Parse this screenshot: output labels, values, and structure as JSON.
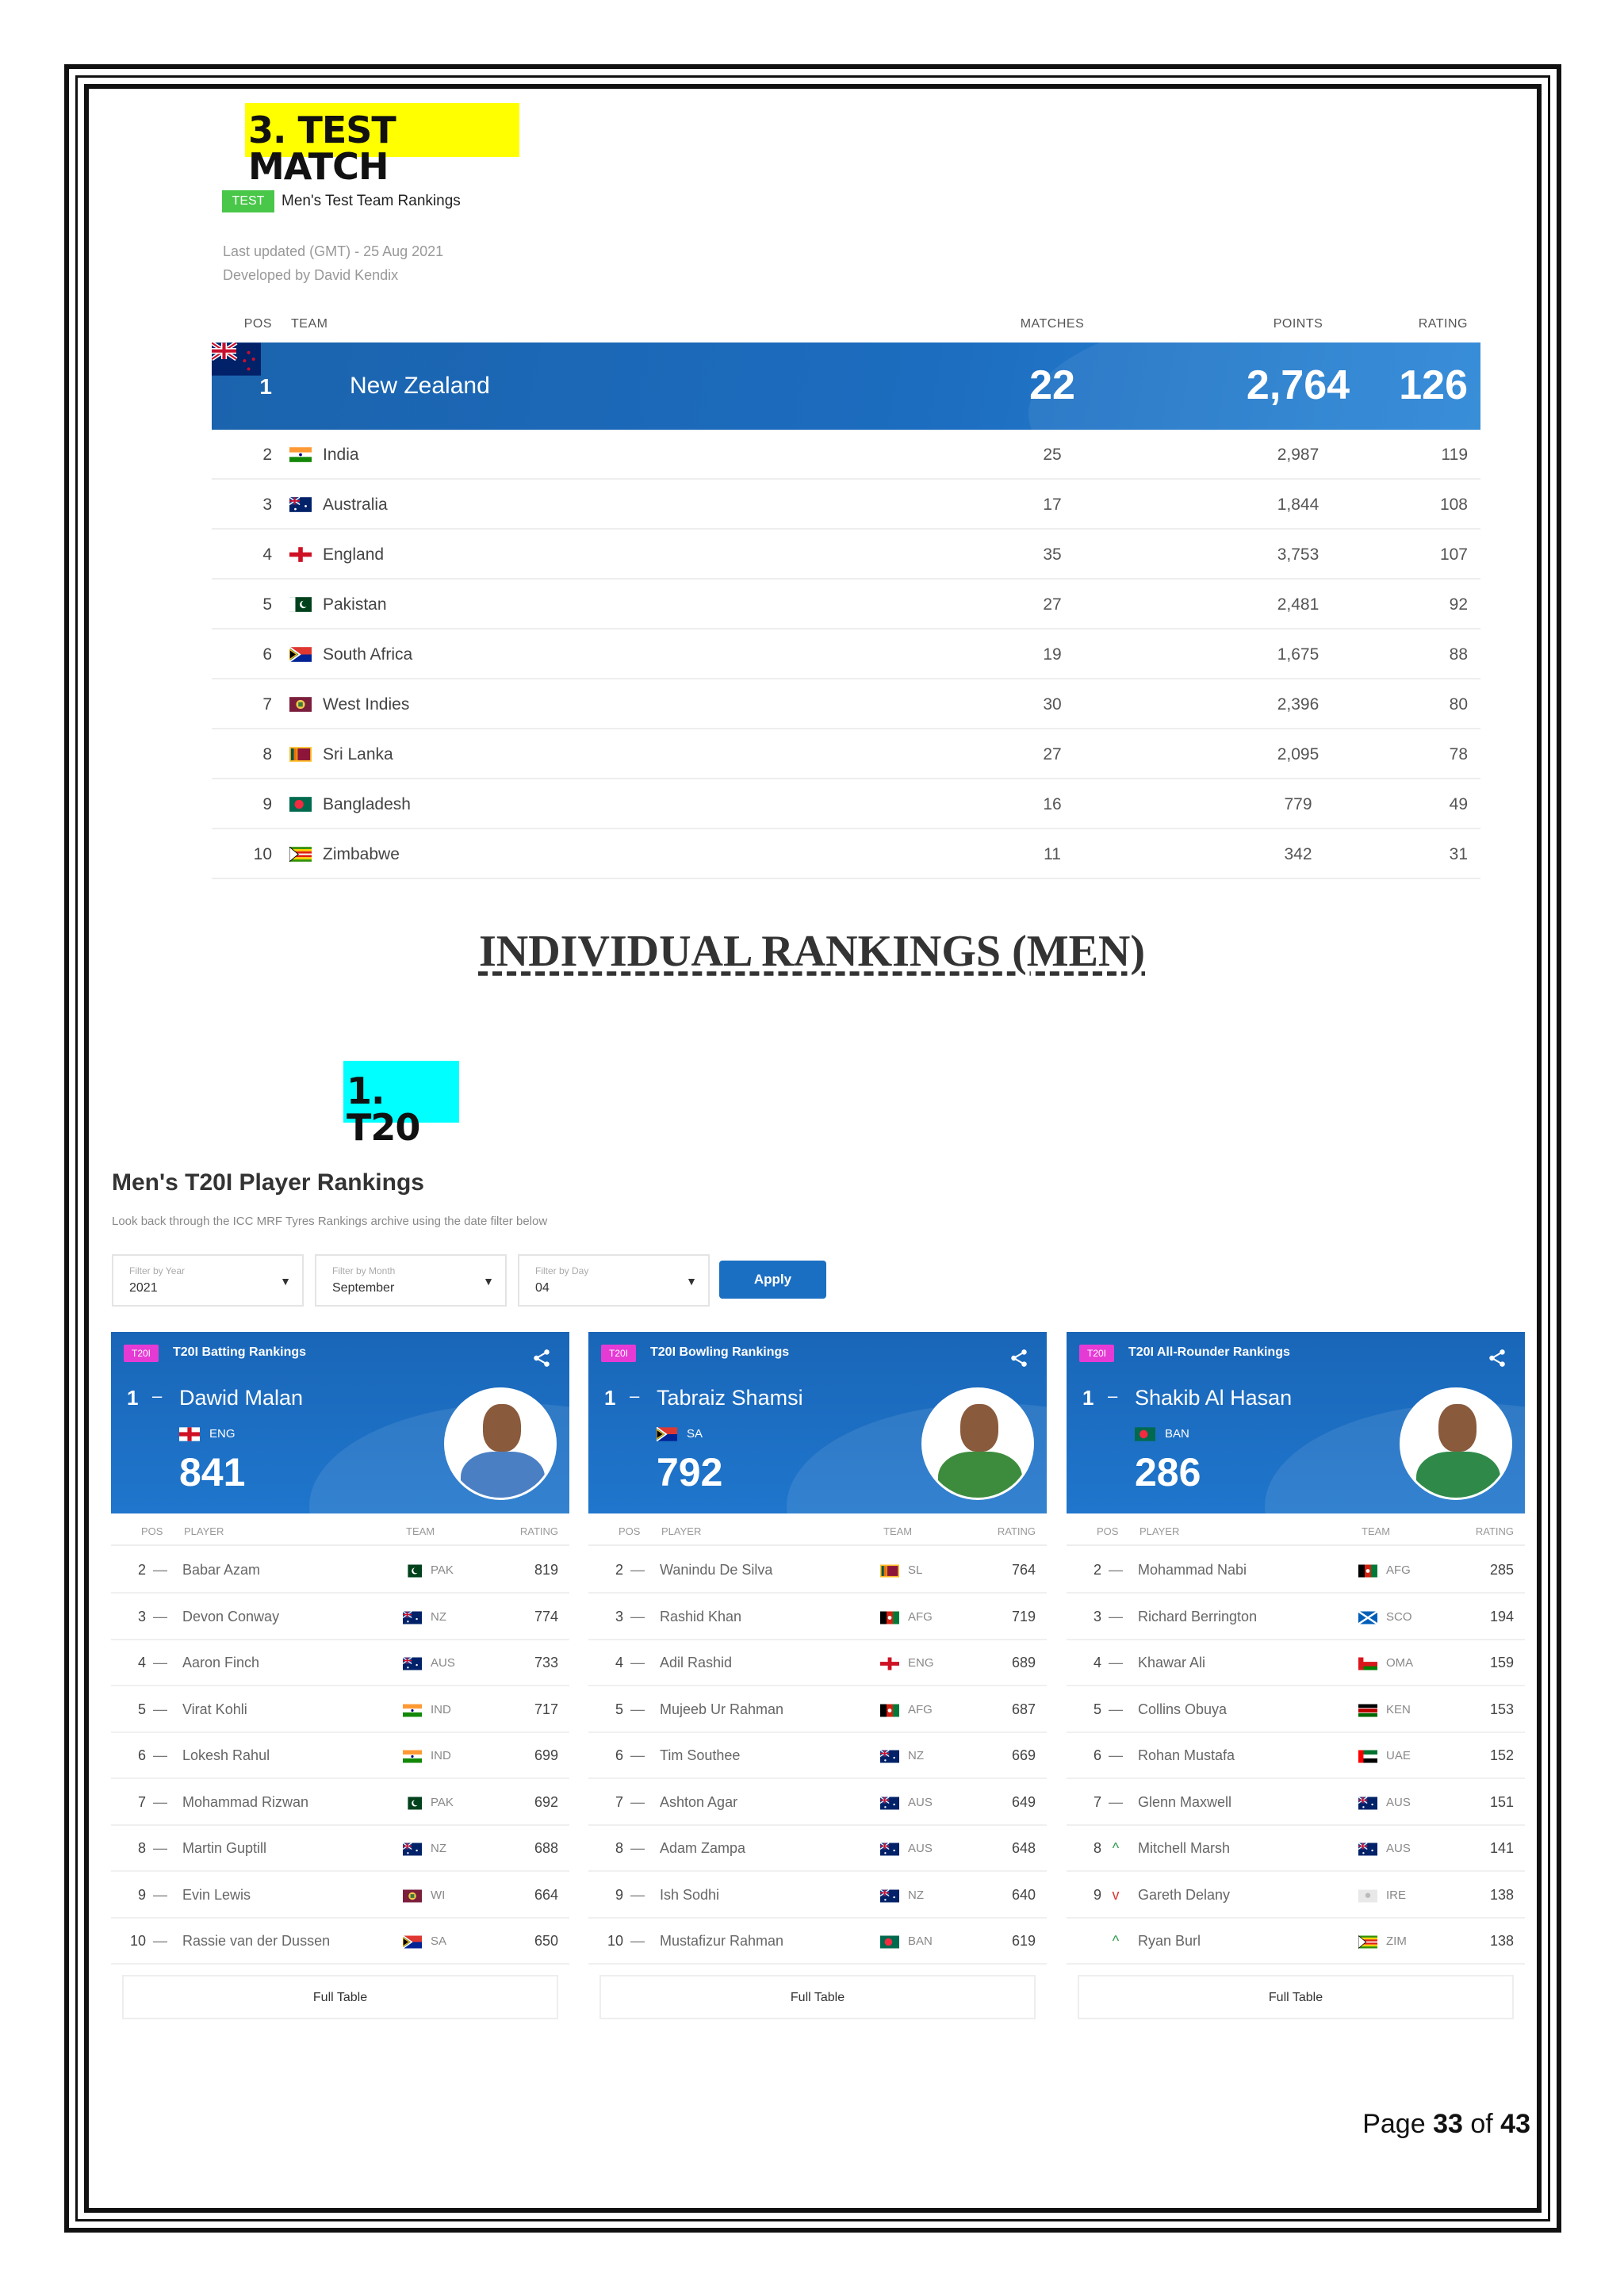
{
  "headings": {
    "test_match": "3. TEST MATCH",
    "individual": "INDIVIDUAL  RANKINGS (MEN)",
    "t20": "1. T20"
  },
  "test_rankings": {
    "badge": "TEST",
    "title": "Men's Test Team Rankings",
    "last_updated": "Last updated (GMT) - 25 Aug 2021",
    "developed_by": "Developed by David Kendix",
    "columns": {
      "pos": "POS",
      "team": "TEAM",
      "matches": "MATCHES",
      "points": "POINTS",
      "rating": "RATING"
    },
    "top": {
      "pos": "1",
      "team": "New Zealand",
      "matches": "22",
      "points": "2,764",
      "rating": "126"
    },
    "rows": [
      {
        "pos": "2",
        "team": "India",
        "matches": "25",
        "points": "2,987",
        "rating": "119",
        "flag": "india"
      },
      {
        "pos": "3",
        "team": "Australia",
        "matches": "17",
        "points": "1,844",
        "rating": "108",
        "flag": "australia"
      },
      {
        "pos": "4",
        "team": "England",
        "matches": "35",
        "points": "3,753",
        "rating": "107",
        "flag": "england"
      },
      {
        "pos": "5",
        "team": "Pakistan",
        "matches": "27",
        "points": "2,481",
        "rating": "92",
        "flag": "pakistan"
      },
      {
        "pos": "6",
        "team": "South Africa",
        "matches": "19",
        "points": "1,675",
        "rating": "88",
        "flag": "south-africa"
      },
      {
        "pos": "7",
        "team": "West Indies",
        "matches": "30",
        "points": "2,396",
        "rating": "80",
        "flag": "west-indies"
      },
      {
        "pos": "8",
        "team": "Sri Lanka",
        "matches": "27",
        "points": "2,095",
        "rating": "78",
        "flag": "sri-lanka"
      },
      {
        "pos": "9",
        "team": "Bangladesh",
        "matches": "16",
        "points": "779",
        "rating": "49",
        "flag": "bangladesh"
      },
      {
        "pos": "10",
        "team": "Zimbabwe",
        "matches": "11",
        "points": "342",
        "rating": "31",
        "flag": "zimbabwe"
      }
    ]
  },
  "t20": {
    "title": "Men's T20I Player Rankings",
    "subtitle": "Look back through the ICC MRF Tyres Rankings archive using the date filter below",
    "filters": [
      {
        "label": "Filter by Year",
        "value": "2021"
      },
      {
        "label": "Filter by Month",
        "value": "September"
      },
      {
        "label": "Filter by Day",
        "value": "04"
      }
    ],
    "apply": "Apply",
    "columns": {
      "pos": "POS",
      "player": "PLAYER",
      "team": "TEAM",
      "rating": "RATING"
    },
    "full_table": "Full Table",
    "cards": [
      {
        "badge": "T20I",
        "title": "T20I Batting Rankings",
        "lead": {
          "pos": "1",
          "name": "Dawid Malan",
          "team": "ENG",
          "rating": "841"
        },
        "rows": [
          {
            "pos": "2",
            "move": "—",
            "name": "Babar Azam",
            "team": "PAK",
            "rating": "819"
          },
          {
            "pos": "3",
            "move": "—",
            "name": "Devon Conway",
            "team": "NZ",
            "rating": "774"
          },
          {
            "pos": "4",
            "move": "—",
            "name": "Aaron Finch",
            "team": "AUS",
            "rating": "733"
          },
          {
            "pos": "5",
            "move": "—",
            "name": "Virat Kohli",
            "team": "IND",
            "rating": "717"
          },
          {
            "pos": "6",
            "move": "—",
            "name": "Lokesh Rahul",
            "team": "IND",
            "rating": "699"
          },
          {
            "pos": "7",
            "move": "—",
            "name": "Mohammad Rizwan",
            "team": "PAK",
            "rating": "692"
          },
          {
            "pos": "8",
            "move": "—",
            "name": "Martin Guptill",
            "team": "NZ",
            "rating": "688"
          },
          {
            "pos": "9",
            "move": "—",
            "name": "Evin Lewis",
            "team": "WI",
            "rating": "664"
          },
          {
            "pos": "10",
            "move": "—",
            "name": "Rassie van der Dussen",
            "team": "SA",
            "rating": "650"
          }
        ]
      },
      {
        "badge": "T20I",
        "title": "T20I Bowling Rankings",
        "lead": {
          "pos": "1",
          "name": "Tabraiz Shamsi",
          "team": "SA",
          "rating": "792"
        },
        "rows": [
          {
            "pos": "2",
            "move": "—",
            "name": "Wanindu De Silva",
            "team": "SL",
            "rating": "764"
          },
          {
            "pos": "3",
            "move": "—",
            "name": "Rashid Khan",
            "team": "AFG",
            "rating": "719"
          },
          {
            "pos": "4",
            "move": "—",
            "name": "Adil Rashid",
            "team": "ENG",
            "rating": "689"
          },
          {
            "pos": "5",
            "move": "—",
            "name": "Mujeeb Ur Rahman",
            "team": "AFG",
            "rating": "687"
          },
          {
            "pos": "6",
            "move": "—",
            "name": "Tim Southee",
            "team": "NZ",
            "rating": "669"
          },
          {
            "pos": "7",
            "move": "—",
            "name": "Ashton Agar",
            "team": "AUS",
            "rating": "649"
          },
          {
            "pos": "8",
            "move": "—",
            "name": "Adam Zampa",
            "team": "AUS",
            "rating": "648"
          },
          {
            "pos": "9",
            "move": "—",
            "name": "Ish Sodhi",
            "team": "NZ",
            "rating": "640"
          },
          {
            "pos": "10",
            "move": "—",
            "name": "Mustafizur Rahman",
            "team": "BAN",
            "rating": "619"
          }
        ]
      },
      {
        "badge": "T20I",
        "title": "T20I All-Rounder Rankings",
        "lead": {
          "pos": "1",
          "name": "Shakib Al Hasan",
          "team": "BAN",
          "rating": "286"
        },
        "rows": [
          {
            "pos": "2",
            "move": "—",
            "name": "Mohammad Nabi",
            "team": "AFG",
            "rating": "285"
          },
          {
            "pos": "3",
            "move": "—",
            "name": "Richard Berrington",
            "team": "SCO",
            "rating": "194"
          },
          {
            "pos": "4",
            "move": "—",
            "name": "Khawar Ali",
            "team": "OMA",
            "rating": "159"
          },
          {
            "pos": "5",
            "move": "—",
            "name": "Collins Obuya",
            "team": "KEN",
            "rating": "153"
          },
          {
            "pos": "6",
            "move": "—",
            "name": "Rohan Mustafa",
            "team": "UAE",
            "rating": "152"
          },
          {
            "pos": "7",
            "move": "—",
            "name": "Glenn Maxwell",
            "team": "AUS",
            "rating": "151"
          },
          {
            "pos": "8",
            "move": "^",
            "name": "Mitchell Marsh",
            "team": "AUS",
            "rating": "141"
          },
          {
            "pos": "9",
            "move": "v",
            "name": "Gareth Delany",
            "team": "IRE",
            "rating": "138"
          },
          {
            "pos": "",
            "move": "^",
            "name": "Ryan Burl",
            "team": "ZIM",
            "rating": "138"
          }
        ]
      }
    ]
  },
  "footer": {
    "page_label": "Page",
    "page": "33",
    "of_label": "of",
    "total": "43"
  }
}
